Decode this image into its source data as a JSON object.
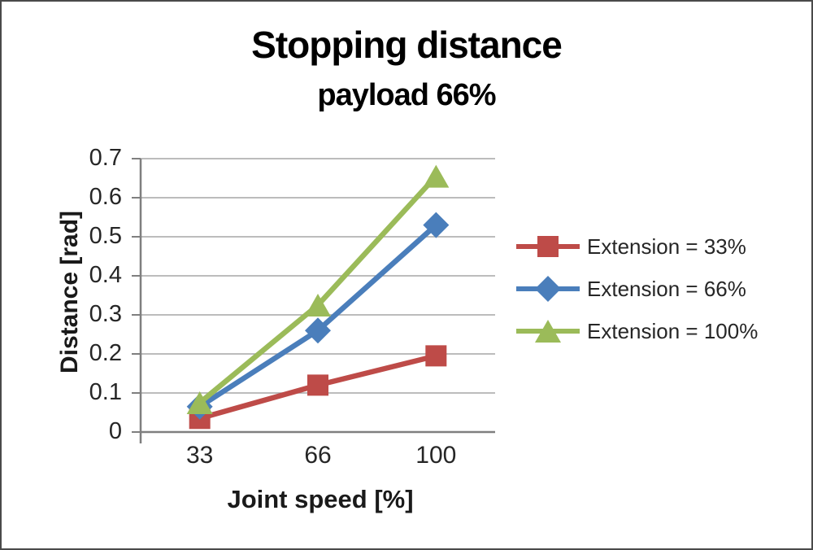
{
  "chart_data": {
    "type": "line",
    "title": "Stopping distance",
    "subtitle": "payload 66%",
    "xlabel": "Joint speed [%]",
    "ylabel": "Distance [rad]",
    "categories": [
      "33",
      "66",
      "100"
    ],
    "series": [
      {
        "name": "Extension = 33%",
        "marker": "square",
        "color": "#BE4B48",
        "values": [
          0.035,
          0.12,
          0.195
        ]
      },
      {
        "name": "Extension = 66%",
        "marker": "diamond",
        "color": "#4A7EBB",
        "values": [
          0.065,
          0.26,
          0.53
        ]
      },
      {
        "name": "Extension = 100%",
        "marker": "triangle",
        "color": "#9BBB59",
        "values": [
          0.075,
          0.325,
          0.655
        ]
      }
    ],
    "ylim": [
      0,
      0.7
    ],
    "y_tick_step": 0.1,
    "y_tick_labels": [
      "0",
      "0.1",
      "0.2",
      "0.3",
      "0.4",
      "0.5",
      "0.6",
      "0.7"
    ],
    "grid": true,
    "legend_position": "right",
    "styles": {
      "gridline_color": "#a6a6a6",
      "axis_color": "#7f7f7f",
      "text_color": "#262626",
      "title_color": "#000000",
      "background": "#ffffff"
    }
  }
}
